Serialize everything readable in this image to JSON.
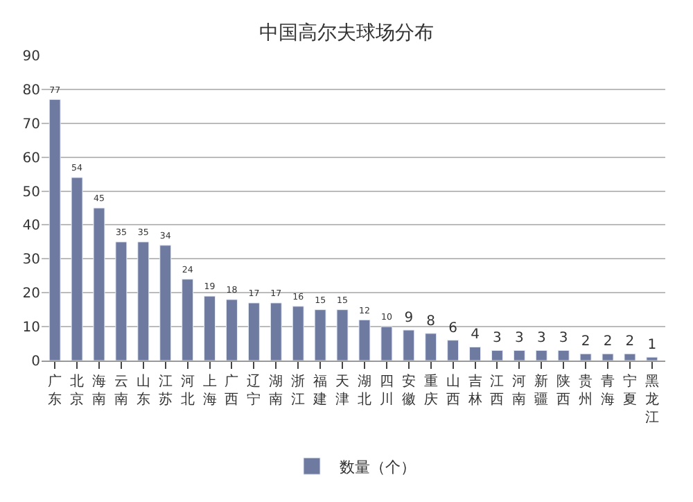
{
  "chart_data": {
    "type": "bar",
    "title": "中国高尔夫球场分布",
    "categories": [
      "广东",
      "北京",
      "海南",
      "云南",
      "山东",
      "江苏",
      "河北",
      "上海",
      "广西",
      "辽宁",
      "湖南",
      "浙江",
      "福建",
      "天津",
      "湖北",
      "四川",
      "安徽",
      "重庆",
      "山西",
      "吉林",
      "江西",
      "河南",
      "新疆",
      "陕西",
      "贵州",
      "青海",
      "宁夏",
      "黑龙江"
    ],
    "series": [
      {
        "name": "数量（个）",
        "color": "#6e7aa0",
        "values": [
          77,
          54,
          45,
          35,
          35,
          34,
          24,
          19,
          18,
          17,
          17,
          16,
          15,
          15,
          12,
          10,
          9,
          8,
          6,
          4,
          3,
          3,
          3,
          3,
          2,
          2,
          2,
          1
        ]
      }
    ],
    "ylim": [
      0,
      90
    ],
    "yticks": [
      0,
      10,
      20,
      30,
      40,
      50,
      60,
      70,
      80,
      90
    ],
    "grid": "y",
    "legend": "bottom",
    "data_labels": true
  }
}
